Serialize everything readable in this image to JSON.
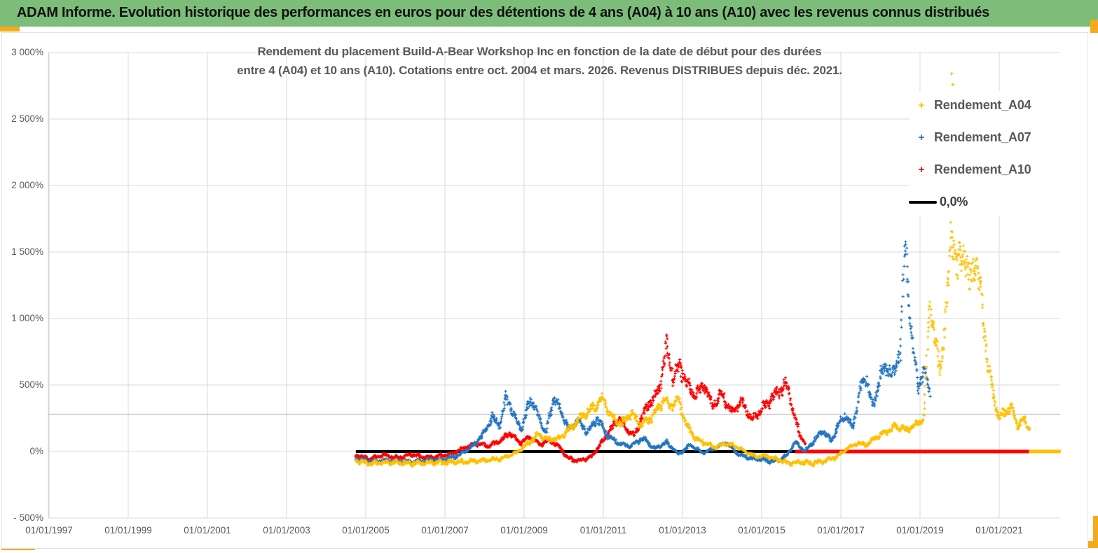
{
  "header": {
    "title": "ADAM Informe. Evolution historique des performances en euros pour des détentions de 4 ans (A04) à 10 ans (A10) avec les revenus connus distribués",
    "background_color": "#7cbd79"
  },
  "chart_data": {
    "type": "scatter",
    "title": "Rendement du placement Build-A-Bear Workshop Inc en fonction de la date de début pour des durées entre 4 (A04) et 10 ans (A10). Cotations entre oct. 2004 et mars. 2026. Revenus DISTRIBUES depuis déc. 2021.",
    "title_lines": [
      "Rendement du placement Build-A-Bear Workshop Inc en fonction de la date de début pour des durées",
      "entre 4 (A04) et 10 ans (A10). Cotations entre oct. 2004 et mars. 2026. Revenus DISTRIBUES depuis déc. 2021."
    ],
    "grid": true,
    "legend_position": "right-top",
    "marker": "+",
    "x_axis": {
      "tick_labels": [
        "01/01/1997",
        "01/01/1999",
        "01/01/2001",
        "01/01/2003",
        "01/01/2005",
        "01/01/2007",
        "01/01/2009",
        "01/01/2011",
        "01/01/2013",
        "01/01/2015",
        "01/01/2017",
        "01/01/2019",
        "01/01/2021"
      ],
      "tick_years": [
        1997,
        1999,
        2001,
        2003,
        2005,
        2007,
        2009,
        2011,
        2013,
        2015,
        2017,
        2019,
        2021
      ],
      "range_years": [
        1997,
        2022.55
      ]
    },
    "y_axis": {
      "unit": "%",
      "tick_labels": [
        "3 000%",
        "2 500%",
        "2 000%",
        "1 500%",
        "1 000%",
        "500%",
        "0%",
        "- 500%"
      ],
      "tick_values": [
        3000,
        2500,
        2000,
        1500,
        1000,
        500,
        0,
        -500
      ],
      "range": [
        -500,
        3000
      ]
    },
    "legend": [
      {
        "label": "Rendement_A04",
        "color": "#FFC000",
        "marker": "+"
      },
      {
        "label": "Rendement_A07",
        "color": "#2374C1",
        "marker": "+"
      },
      {
        "label": "Rendement_A10",
        "color": "#FF0000",
        "marker": "+"
      },
      {
        "label": "0,0%",
        "color": "#000000",
        "marker": "line"
      }
    ],
    "baseline_segments": [
      {
        "color": "#000000",
        "value_pct": 0,
        "from_year": 2004.75,
        "to_year": 2015.85,
        "width": 4
      },
      {
        "color": "#FF0000",
        "value_pct": 0,
        "from_year": 2015.85,
        "to_year": 2022.55,
        "width": 5
      },
      {
        "color": "#FFC000",
        "value_pct": 0,
        "from_year": 2021.75,
        "to_year": 2022.55,
        "width": 5
      }
    ],
    "series": [
      {
        "name": "Rendement_A04",
        "color": "#FFC000",
        "seed": 11,
        "anchors": [
          [
            2004.75,
            -70
          ],
          [
            2005.1,
            -90
          ],
          [
            2005.6,
            -80
          ],
          [
            2006.1,
            -90
          ],
          [
            2006.6,
            -85
          ],
          [
            2007.1,
            -80
          ],
          [
            2007.6,
            -75
          ],
          [
            2008.0,
            -65
          ],
          [
            2008.4,
            -55
          ],
          [
            2008.8,
            -10
          ],
          [
            2009.1,
            60
          ],
          [
            2009.35,
            130
          ],
          [
            2009.6,
            90
          ],
          [
            2009.9,
            100
          ],
          [
            2010.15,
            170
          ],
          [
            2010.45,
            260
          ],
          [
            2010.75,
            330
          ],
          [
            2011.0,
            395
          ],
          [
            2011.2,
            260
          ],
          [
            2011.45,
            210
          ],
          [
            2011.7,
            290
          ],
          [
            2011.95,
            200
          ],
          [
            2012.2,
            250
          ],
          [
            2012.5,
            380
          ],
          [
            2012.7,
            340
          ],
          [
            2012.9,
            390
          ],
          [
            2013.1,
            200
          ],
          [
            2013.35,
            90
          ],
          [
            2013.6,
            60
          ],
          [
            2013.85,
            30
          ],
          [
            2014.1,
            60
          ],
          [
            2014.35,
            40
          ],
          [
            2014.6,
            0
          ],
          [
            2014.85,
            -40
          ],
          [
            2015.1,
            -30
          ],
          [
            2015.4,
            -60
          ],
          [
            2015.7,
            -85
          ],
          [
            2016.0,
            -80
          ],
          [
            2016.3,
            -90
          ],
          [
            2016.6,
            -70
          ],
          [
            2016.9,
            -40
          ],
          [
            2017.15,
            20
          ],
          [
            2017.4,
            60
          ],
          [
            2017.65,
            50
          ],
          [
            2017.9,
            110
          ],
          [
            2018.15,
            150
          ],
          [
            2018.4,
            190
          ],
          [
            2018.65,
            160
          ],
          [
            2018.9,
            200
          ],
          [
            2019.1,
            250
          ],
          [
            2019.25,
            1150
          ],
          [
            2019.4,
            800
          ],
          [
            2019.5,
            600
          ],
          [
            2019.65,
            1000
          ],
          [
            2019.8,
            1680
          ],
          [
            2019.95,
            1350
          ],
          [
            2020.1,
            1550
          ],
          [
            2020.25,
            1250
          ],
          [
            2020.4,
            1450
          ],
          [
            2020.55,
            1150
          ],
          [
            2020.7,
            700
          ],
          [
            2020.85,
            420
          ],
          [
            2021.0,
            250
          ],
          [
            2021.15,
            300
          ],
          [
            2021.3,
            340
          ],
          [
            2021.45,
            190
          ],
          [
            2021.6,
            240
          ],
          [
            2021.78,
            170
          ]
        ],
        "outliers": [
          [
            2019.8,
            2840
          ],
          [
            2019.83,
            2760
          ]
        ]
      },
      {
        "name": "Rendement_A07",
        "color": "#2374C1",
        "seed": 29,
        "anchors": [
          [
            2004.75,
            -55
          ],
          [
            2005.15,
            -75
          ],
          [
            2005.6,
            -70
          ],
          [
            2006.05,
            -78
          ],
          [
            2006.5,
            -72
          ],
          [
            2006.95,
            -60
          ],
          [
            2007.35,
            -30
          ],
          [
            2007.7,
            40
          ],
          [
            2007.95,
            120
          ],
          [
            2008.2,
            260
          ],
          [
            2008.4,
            200
          ],
          [
            2008.55,
            430
          ],
          [
            2008.75,
            260
          ],
          [
            2008.95,
            170
          ],
          [
            2009.15,
            400
          ],
          [
            2009.35,
            280
          ],
          [
            2009.55,
            130
          ],
          [
            2009.75,
            410
          ],
          [
            2009.95,
            290
          ],
          [
            2010.15,
            160
          ],
          [
            2010.35,
            240
          ],
          [
            2010.6,
            140
          ],
          [
            2010.85,
            250
          ],
          [
            2011.1,
            120
          ],
          [
            2011.4,
            60
          ],
          [
            2011.7,
            40
          ],
          [
            2012.0,
            100
          ],
          [
            2012.3,
            20
          ],
          [
            2012.6,
            70
          ],
          [
            2012.9,
            -20
          ],
          [
            2013.2,
            50
          ],
          [
            2013.5,
            -10
          ],
          [
            2013.8,
            20
          ],
          [
            2014.1,
            70
          ],
          [
            2014.4,
            -20
          ],
          [
            2014.7,
            -50
          ],
          [
            2015.0,
            -60
          ],
          [
            2015.3,
            -75
          ],
          [
            2015.6,
            -40
          ],
          [
            2015.85,
            70
          ],
          [
            2016.1,
            0
          ],
          [
            2016.35,
            90
          ],
          [
            2016.55,
            160
          ],
          [
            2016.75,
            80
          ],
          [
            2016.95,
            200
          ],
          [
            2017.1,
            280
          ],
          [
            2017.3,
            180
          ],
          [
            2017.5,
            480
          ],
          [
            2017.65,
            560
          ],
          [
            2017.8,
            320
          ],
          [
            2018.0,
            580
          ],
          [
            2018.2,
            640
          ],
          [
            2018.35,
            560
          ],
          [
            2018.5,
            780
          ],
          [
            2018.62,
            1540
          ],
          [
            2018.72,
            1150
          ],
          [
            2018.85,
            700
          ],
          [
            2018.95,
            480
          ],
          [
            2019.1,
            620
          ],
          [
            2019.25,
            430
          ]
        ],
        "outliers": []
      },
      {
        "name": "Rendement_A10",
        "color": "#FF0000",
        "seed": 47,
        "anchors": [
          [
            2004.75,
            -30
          ],
          [
            2005.1,
            -55
          ],
          [
            2005.45,
            -25
          ],
          [
            2005.8,
            -50
          ],
          [
            2006.15,
            -20
          ],
          [
            2006.5,
            -45
          ],
          [
            2006.85,
            -35
          ],
          [
            2007.2,
            -15
          ],
          [
            2007.5,
            30
          ],
          [
            2007.8,
            60
          ],
          [
            2008.1,
            40
          ],
          [
            2008.4,
            80
          ],
          [
            2008.65,
            140
          ],
          [
            2008.9,
            60
          ],
          [
            2009.15,
            110
          ],
          [
            2009.4,
            50
          ],
          [
            2009.65,
            90
          ],
          [
            2009.9,
            30
          ],
          [
            2010.1,
            -50
          ],
          [
            2010.4,
            -70
          ],
          [
            2010.7,
            -40
          ],
          [
            2010.95,
            60
          ],
          [
            2011.15,
            150
          ],
          [
            2011.4,
            250
          ],
          [
            2011.6,
            160
          ],
          [
            2011.8,
            120
          ],
          [
            2012.0,
            280
          ],
          [
            2012.2,
            380
          ],
          [
            2012.4,
            450
          ],
          [
            2012.6,
            800
          ],
          [
            2012.75,
            560
          ],
          [
            2012.95,
            640
          ],
          [
            2013.15,
            480
          ],
          [
            2013.35,
            420
          ],
          [
            2013.55,
            510
          ],
          [
            2013.75,
            340
          ],
          [
            2014.0,
            440
          ],
          [
            2014.25,
            290
          ],
          [
            2014.5,
            380
          ],
          [
            2014.75,
            230
          ],
          [
            2015.0,
            320
          ],
          [
            2015.25,
            400
          ],
          [
            2015.5,
            470
          ],
          [
            2015.65,
            500
          ],
          [
            2015.8,
            290
          ],
          [
            2015.95,
            140
          ],
          [
            2016.1,
            60
          ]
        ],
        "outliers": []
      }
    ]
  }
}
